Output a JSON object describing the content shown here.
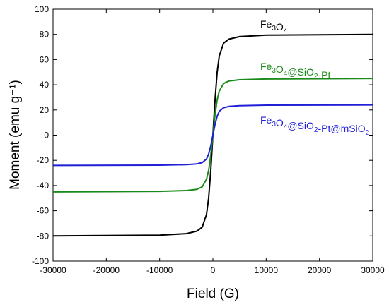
{
  "chart_data": {
    "type": "line",
    "xlabel": "Field (G)",
    "ylabel": "Moment (emu g⁻¹)",
    "xlim": [
      -30000,
      30000
    ],
    "ylim": [
      -100,
      100
    ],
    "x_ticks": [
      -30000,
      -20000,
      -10000,
      0,
      10000,
      20000,
      30000
    ],
    "x_tick_labels": [
      "-30000",
      "-20000",
      "-10000",
      "0",
      "10000",
      "20000",
      "30000"
    ],
    "y_ticks": [
      -100,
      -80,
      -60,
      -40,
      -20,
      0,
      20,
      40,
      60,
      80,
      100
    ],
    "y_tick_labels": [
      "-100",
      "-80",
      "-60",
      "-40",
      "-20",
      "0",
      "20",
      "40",
      "60",
      "80",
      "100"
    ],
    "grid": false,
    "legend": "inline labels near curves",
    "series": [
      {
        "key": "fe3o4",
        "name": "Fe3O4",
        "color": "#000000",
        "saturation": 80,
        "x": [
          -30000,
          -10000,
          -5000,
          -3000,
          -2000,
          -1200,
          -800,
          -400,
          0,
          400,
          800,
          1200,
          2000,
          3000,
          5000,
          10000,
          30000
        ],
        "y": [
          -80,
          -79.4,
          -78.2,
          -76.2,
          -73,
          -63,
          -50,
          -28,
          0,
          28,
          50,
          63,
          73,
          76.2,
          78.2,
          79.4,
          80
        ]
      },
      {
        "key": "fe3o4_sio2_pt",
        "name": "Fe3O4@SiO2-Pt",
        "color": "#1a8a1a",
        "saturation": 45,
        "x": [
          -30000,
          -10000,
          -5000,
          -3000,
          -2000,
          -1200,
          -800,
          -400,
          0,
          400,
          800,
          1200,
          2000,
          3000,
          5000,
          10000,
          30000
        ],
        "y": [
          -45,
          -44.6,
          -44,
          -43,
          -41,
          -35,
          -28,
          -16,
          0,
          16,
          28,
          35,
          41,
          43,
          44,
          44.6,
          45
        ]
      },
      {
        "key": "fe3o4_sio2_pt_msio2",
        "name": "Fe3O4@SiO2-Pt@mSiO2",
        "color": "#1f1fd6",
        "saturation": 24,
        "x": [
          -30000,
          -10000,
          -5000,
          -3000,
          -2000,
          -1200,
          -800,
          -400,
          0,
          400,
          800,
          1200,
          2000,
          3000,
          5000,
          10000,
          30000
        ],
        "y": [
          -24,
          -23.8,
          -23.4,
          -22.8,
          -21.8,
          -19,
          -15,
          -8.5,
          0,
          8.5,
          15,
          19,
          21.8,
          22.8,
          23.4,
          23.8,
          24
        ]
      }
    ],
    "annotations": [
      {
        "series": "fe3o4",
        "parts": [
          [
            "Fe",
            ""
          ],
          [
            "3",
            "sub"
          ],
          [
            "O",
            ""
          ],
          [
            "4",
            "sub"
          ]
        ]
      },
      {
        "series": "fe3o4_sio2_pt",
        "parts": [
          [
            "Fe",
            ""
          ],
          [
            "3",
            "sub"
          ],
          [
            "O",
            ""
          ],
          [
            "4",
            "sub"
          ],
          [
            "@SiO",
            ""
          ],
          [
            "2",
            "sub"
          ],
          [
            "-Pt",
            ""
          ]
        ]
      },
      {
        "series": "fe3o4_sio2_pt_msio2",
        "parts": [
          [
            "Fe",
            ""
          ],
          [
            "3",
            "sub"
          ],
          [
            "O",
            ""
          ],
          [
            "4",
            "sub"
          ],
          [
            "@SiO",
            ""
          ],
          [
            "2",
            "sub"
          ],
          [
            "-Pt@mSiO",
            ""
          ],
          [
            "2",
            "sub"
          ]
        ]
      }
    ]
  }
}
